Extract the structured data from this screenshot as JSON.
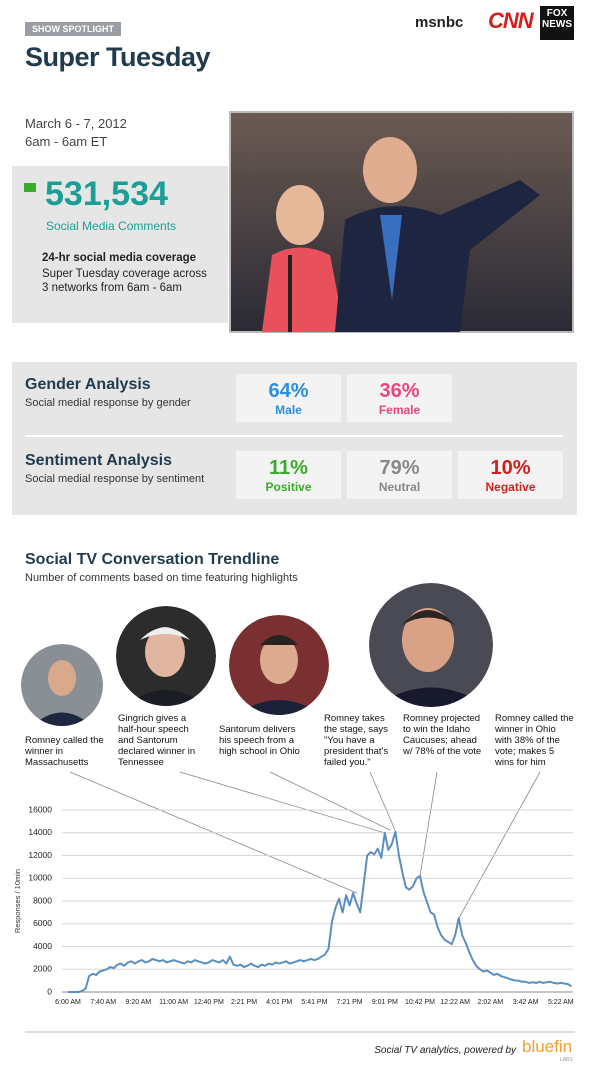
{
  "header": {
    "badge": "SHOW SPOTLIGHT",
    "title": "Super Tuesday",
    "networks": [
      "msnbc",
      "CNN",
      "FOX NEWS"
    ]
  },
  "summary": {
    "date": "March 6 - 7, 2012",
    "time": "6am - 6am ET",
    "total": "531,534",
    "total_label": "Social Media Comments",
    "coverage_title": "24-hr social media coverage",
    "coverage_text": "Super Tuesday coverage across 3 networks from 6am - 6am"
  },
  "gender": {
    "title": "Gender Analysis",
    "subtitle": "Social medial response by gender",
    "items": [
      {
        "value": "64%",
        "label": "Male"
      },
      {
        "value": "36%",
        "label": "Female"
      }
    ]
  },
  "sentiment": {
    "title": "Sentiment Analysis",
    "subtitle": "Social medial response by sentiment",
    "items": [
      {
        "value": "11%",
        "label": "Positive"
      },
      {
        "value": "79%",
        "label": "Neutral"
      },
      {
        "value": "10%",
        "label": "Negative"
      }
    ]
  },
  "chart_data": {
    "type": "line",
    "title": "Social TV Conversation Trendline",
    "subtitle": "Number of comments based on time featuring highlights",
    "y_label": "Responses / 10min",
    "categories": [
      "6:00 AM",
      null,
      null,
      null,
      null,
      null,
      null,
      null,
      null,
      null,
      "7:40 AM",
      null,
      null,
      null,
      null,
      null,
      null,
      null,
      null,
      null,
      "9:20 AM",
      null,
      null,
      null,
      null,
      null,
      null,
      null,
      null,
      null,
      "11:00 AM",
      null,
      null,
      null,
      null,
      null,
      null,
      null,
      null,
      null,
      "12:40 PM",
      null,
      null,
      null,
      null,
      null,
      null,
      null,
      null,
      null,
      "2:21 PM",
      null,
      null,
      null,
      null,
      null,
      null,
      null,
      null,
      null,
      "4:01 PM",
      null,
      null,
      null,
      null,
      null,
      null,
      null,
      null,
      null,
      "5:41 PM",
      null,
      null,
      null,
      null,
      null,
      null,
      null,
      null,
      null,
      "7:21 PM",
      null,
      null,
      null,
      null,
      null,
      null,
      null,
      null,
      null,
      "9:01 PM",
      null,
      null,
      null,
      null,
      null,
      null,
      null,
      null,
      null,
      "10:42 PM",
      null,
      null,
      null,
      null,
      null,
      null,
      null,
      null,
      null,
      "12:22 AM",
      null,
      null,
      null,
      null,
      null,
      null,
      null,
      null,
      null,
      "2:02 AM",
      null,
      null,
      null,
      null,
      null,
      null,
      null,
      null,
      null,
      "3:42 AM",
      null,
      null,
      null,
      null,
      null,
      null,
      null,
      null,
      null,
      "5:22 AM",
      null,
      null,
      null
    ],
    "series": [
      {
        "color": "#5b8fc0",
        "values": [
          0,
          0,
          0,
          0,
          100,
          300,
          1400,
          1600,
          1500,
          1800,
          1900,
          2000,
          2200,
          2100,
          2400,
          2500,
          2300,
          2600,
          2700,
          2500,
          2700,
          2800,
          2600,
          2700,
          2900,
          2800,
          2700,
          2800,
          2600,
          2700,
          2800,
          2700,
          2600,
          2500,
          2700,
          2600,
          2800,
          2700,
          2600,
          2500,
          2600,
          2800,
          2700,
          2600,
          2800,
          2500,
          3100,
          2400,
          2300,
          2400,
          2200,
          2300,
          2500,
          2300,
          2200,
          2400,
          2300,
          2500,
          2400,
          2600,
          2500,
          2600,
          2700,
          2500,
          2600,
          2700,
          2800,
          2700,
          2800,
          2900,
          2800,
          2900,
          3100,
          3300,
          3800,
          6200,
          7400,
          8200,
          7000,
          8500,
          7600,
          8700,
          7800,
          7000,
          9500,
          12000,
          12300,
          12100,
          12600,
          11800,
          14000,
          12500,
          13000,
          14100,
          12000,
          10500,
          9200,
          9000,
          9300,
          10000,
          10200,
          8800,
          7900,
          7000,
          6800,
          5700,
          5000,
          4600,
          4400,
          4200,
          5000,
          6500,
          5000,
          4300,
          3500,
          2800,
          2300,
          2000,
          1800,
          1900,
          1700,
          1500,
          1600,
          1400,
          1300,
          1200,
          1100,
          1000,
          1000,
          900,
          900,
          800,
          850,
          800,
          900,
          800,
          850,
          900,
          800,
          750,
          800,
          750,
          700,
          500
        ]
      }
    ],
    "ylim": [
      0,
      16000
    ],
    "yticks": [
      0,
      2000,
      4000,
      6000,
      8000,
      10000,
      12000,
      14000,
      16000
    ],
    "grid": true,
    "annotations": [
      "Romney called the winner in Massachusetts",
      "Gingrich gives a half-hour speech and Santorum declared winner in Tennessee",
      "Santorum delivers his speech from a high school in Ohio",
      "Romney takes the stage, says \"You have a president that's failed you.\"",
      "Romney projected to win the Idaho Caucuses; ahead w/ 78% of the vote",
      "Romney called the winner in Ohio with 38% of the vote; makes 5 wins for him"
    ]
  },
  "footer": {
    "text": "Social TV analytics, powered by",
    "brand": "bluefin",
    "brand_sub": "LABS"
  }
}
